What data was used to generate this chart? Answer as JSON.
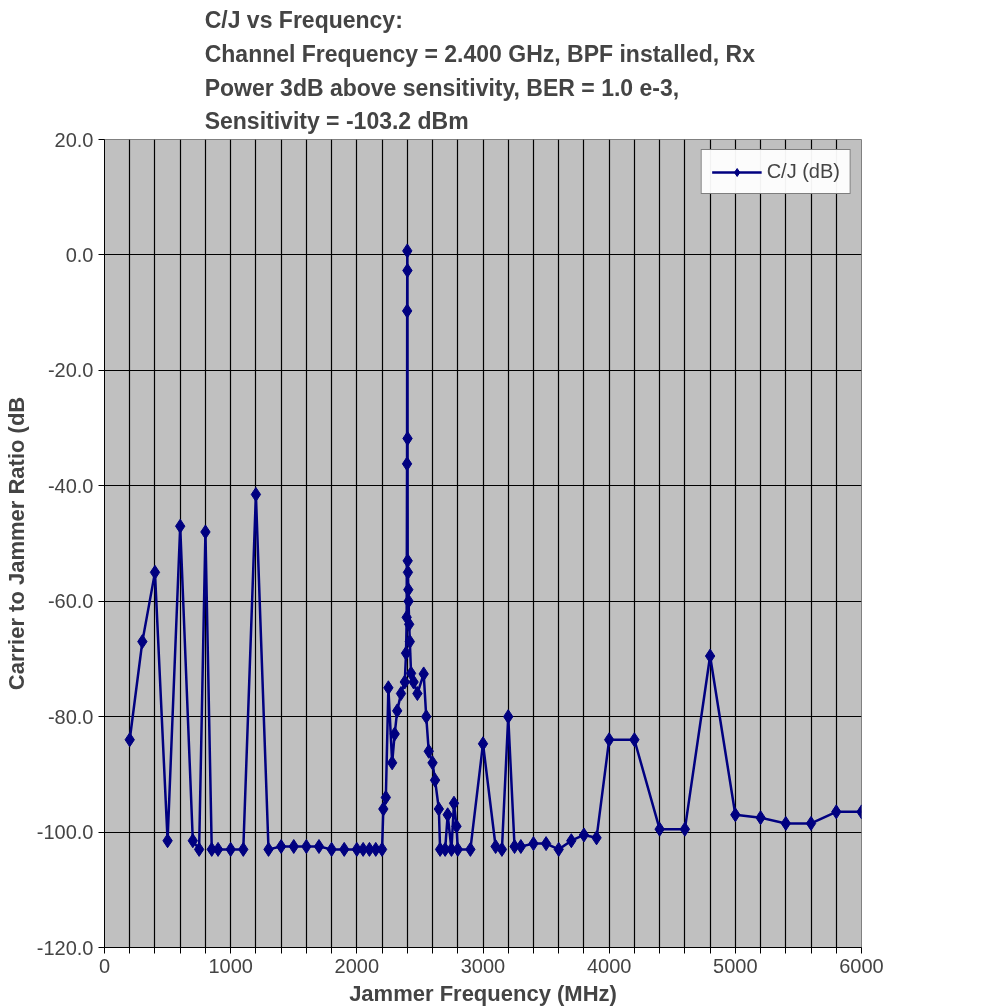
{
  "chart_data": {
    "type": "line",
    "title": "C/J vs Frequency:\nChannel Frequency = 2.400 GHz,  BPF installed, Rx\nPower 3dB above sensitivity,  BER = 1.0 e-3,\nSensitivity = -103.2 dBm",
    "xlabel": "Jammer Frequency (MHz)",
    "ylabel": "Carrier to Jammer Ratio (dB",
    "xlim": [
      0,
      6000
    ],
    "ylim": [
      -120,
      20
    ],
    "xticks": [
      0,
      {
        "value": 200,
        "label": null
      },
      {
        "value": 400,
        "label": null
      },
      {
        "value": 600,
        "label": null
      },
      {
        "value": 800,
        "label": null
      },
      1000,
      {
        "value": 1200,
        "label": null
      },
      {
        "value": 1400,
        "label": null
      },
      {
        "value": 1600,
        "label": null
      },
      {
        "value": 1800,
        "label": null
      },
      2000,
      {
        "value": 2200,
        "label": null
      },
      {
        "value": 2400,
        "label": null
      },
      {
        "value": 2600,
        "label": null
      },
      {
        "value": 2800,
        "label": null
      },
      3000,
      {
        "value": 3200,
        "label": null
      },
      {
        "value": 3400,
        "label": null
      },
      {
        "value": 3600,
        "label": null
      },
      {
        "value": 3800,
        "label": null
      },
      4000,
      {
        "value": 4200,
        "label": null
      },
      {
        "value": 4400,
        "label": null
      },
      {
        "value": 4600,
        "label": null
      },
      {
        "value": 4800,
        "label": null
      },
      5000,
      {
        "value": 5200,
        "label": null
      },
      {
        "value": 5400,
        "label": null
      },
      {
        "value": 5600,
        "label": null
      },
      {
        "value": 5800,
        "label": null
      },
      6000
    ],
    "yticks": [
      {
        "value": -120,
        "label": "-120.0"
      },
      {
        "value": -100,
        "label": "-100.0"
      },
      {
        "value": -80,
        "label": "-80.0"
      },
      {
        "value": -60,
        "label": "-60.0"
      },
      {
        "value": -40,
        "label": "-40.0"
      },
      {
        "value": -20,
        "label": "-20.0"
      },
      {
        "value": 0,
        "label": "0.0"
      },
      {
        "value": 20,
        "label": "20.0"
      }
    ],
    "grid": true,
    "legend": "top right",
    "marker": "diamond",
    "line_style": "solid",
    "series": [
      {
        "name": "C/J (dB)",
        "color": "#000080",
        "x": [
          200,
          300,
          400,
          500,
          600,
          700,
          750,
          800,
          850,
          900,
          1000,
          1100,
          1200,
          1300,
          1400,
          1500,
          1600,
          1700,
          1800,
          1900,
          2000,
          2050,
          2100,
          2150,
          2200,
          2210,
          2230,
          2250,
          2280,
          2300,
          2320,
          2350,
          2380,
          2390,
          2395,
          2398,
          2399,
          2400,
          2401,
          2402,
          2403,
          2405,
          2408,
          2410,
          2415,
          2420,
          2430,
          2450,
          2480,
          2530,
          2550,
          2570,
          2600,
          2620,
          2650,
          2660,
          2700,
          2720,
          2750,
          2770,
          2790,
          2800,
          2900,
          3000,
          3100,
          3150,
          3200,
          3250,
          3300,
          3400,
          3500,
          3600,
          3700,
          3800,
          3900,
          4000,
          4200,
          4400,
          4600,
          4800,
          5000,
          5200,
          5400,
          5600,
          5800,
          6000
        ],
        "values": [
          -84,
          -67,
          -55,
          -101.5,
          -47,
          -101.5,
          -103,
          -48,
          -103,
          -103,
          -103,
          -103,
          -41.5,
          -103,
          -102.5,
          -102.5,
          -102.5,
          -102.5,
          -103,
          -103,
          -103,
          -103,
          -103,
          -103,
          -103,
          -96,
          -94,
          -75,
          -88,
          -83,
          -79,
          -76,
          -74,
          -69,
          -62.8,
          -36.2,
          -9.7,
          0.7,
          -2.7,
          -31.8,
          -53,
          -55,
          -58,
          -60,
          -64,
          -67,
          -72.5,
          -74,
          -76,
          -72.6,
          -80,
          -86,
          -88,
          -91,
          -96,
          -103,
          -103,
          -97,
          -103,
          -95,
          -99,
          -103,
          -103,
          -84.7,
          -102.5,
          -103,
          -80,
          -102.5,
          -102.5,
          -102,
          -102,
          -103,
          -101.5,
          -100.5,
          -101,
          -84,
          -84,
          -99.5,
          -99.5,
          -69.5,
          -97,
          -97.5,
          -98.5,
          -98.5,
          -96.5,
          -96.5
        ]
      }
    ]
  }
}
